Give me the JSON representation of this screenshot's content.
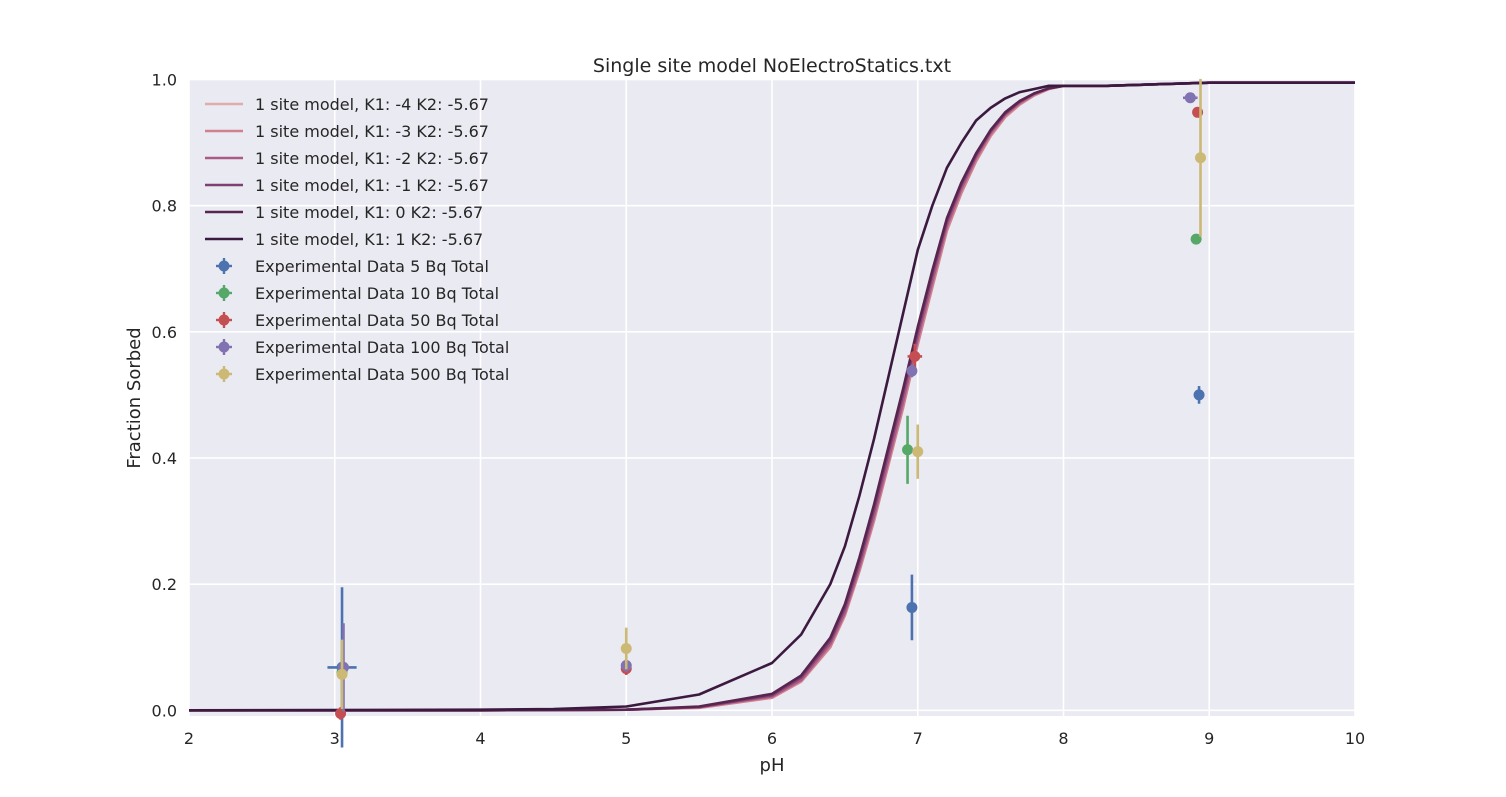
{
  "chart_data": {
    "type": "line",
    "title": "Single site model NoElectroStatics.txt",
    "xlabel": "pH",
    "ylabel": "Fraction Sorbed",
    "xlim": [
      2,
      10
    ],
    "ylim": [
      -0.01,
      1.0
    ],
    "xticks": [
      2,
      3,
      4,
      5,
      6,
      7,
      8,
      9,
      10
    ],
    "xtick_labels": [
      "2",
      "3",
      "4",
      "5",
      "6",
      "7",
      "8",
      "9",
      "10"
    ],
    "yticks": [
      0.0,
      0.2,
      0.4,
      0.6,
      0.8,
      1.0
    ],
    "ytick_labels": [
      "0.0",
      "0.2",
      "0.4",
      "0.6",
      "0.8",
      "1.0"
    ],
    "grid": true,
    "legend_position": "top-left",
    "series": [
      {
        "name": "1 site model, K1: -4 K2: -5.67",
        "kind": "line",
        "color": "#e0adab",
        "x": [
          2,
          4,
          5,
          5.5,
          6,
          6.2,
          6.4,
          6.5,
          6.6,
          6.7,
          6.8,
          6.9,
          7.0,
          7.1,
          7.2,
          7.3,
          7.4,
          7.5,
          7.6,
          7.7,
          7.8,
          7.9,
          8.0,
          8.1,
          8.3,
          9,
          10
        ],
        "y": [
          0,
          0,
          0.001,
          0.004,
          0.02,
          0.045,
          0.1,
          0.15,
          0.22,
          0.3,
          0.39,
          0.48,
          0.58,
          0.67,
          0.76,
          0.82,
          0.87,
          0.91,
          0.94,
          0.96,
          0.975,
          0.985,
          0.99,
          0.99,
          0.99,
          0.995,
          0.995
        ]
      },
      {
        "name": "1 site model, K1: -3 K2: -5.67",
        "kind": "line",
        "color": "#d0808f",
        "x": [
          2,
          4,
          5,
          5.5,
          6,
          6.2,
          6.4,
          6.5,
          6.6,
          6.7,
          6.8,
          6.9,
          7.0,
          7.1,
          7.2,
          7.3,
          7.4,
          7.5,
          7.6,
          7.7,
          7.8,
          7.9,
          8.0,
          8.1,
          8.3,
          9,
          10
        ],
        "y": [
          0,
          0,
          0.001,
          0.004,
          0.02,
          0.046,
          0.1,
          0.151,
          0.221,
          0.301,
          0.391,
          0.481,
          0.581,
          0.671,
          0.761,
          0.821,
          0.871,
          0.911,
          0.941,
          0.961,
          0.975,
          0.985,
          0.99,
          0.99,
          0.99,
          0.995,
          0.995
        ]
      },
      {
        "name": "1 site model, K1: -2 K2: -5.67",
        "kind": "line",
        "color": "#a95b84",
        "x": [
          2,
          4,
          5,
          5.5,
          6,
          6.2,
          6.4,
          6.5,
          6.6,
          6.7,
          6.8,
          6.9,
          7.0,
          7.1,
          7.2,
          7.3,
          7.4,
          7.5,
          7.6,
          7.7,
          7.8,
          7.9,
          8.0,
          8.1,
          8.3,
          9,
          10
        ],
        "y": [
          0,
          0,
          0.001,
          0.005,
          0.022,
          0.048,
          0.105,
          0.155,
          0.227,
          0.308,
          0.398,
          0.49,
          0.59,
          0.68,
          0.768,
          0.827,
          0.876,
          0.915,
          0.944,
          0.963,
          0.977,
          0.986,
          0.99,
          0.99,
          0.99,
          0.995,
          0.995
        ]
      },
      {
        "name": "1 site model, K1: -1 K2: -5.67",
        "kind": "line",
        "color": "#7e3f73",
        "x": [
          2,
          4,
          5,
          5.5,
          6,
          6.2,
          6.4,
          6.5,
          6.6,
          6.7,
          6.8,
          6.9,
          7.0,
          7.1,
          7.2,
          7.3,
          7.4,
          7.5,
          7.6,
          7.7,
          7.8,
          7.9,
          8.0,
          8.1,
          8.3,
          9,
          10
        ],
        "y": [
          0,
          0,
          0.001,
          0.005,
          0.024,
          0.052,
          0.11,
          0.162,
          0.235,
          0.318,
          0.41,
          0.502,
          0.6,
          0.69,
          0.775,
          0.833,
          0.88,
          0.918,
          0.946,
          0.965,
          0.978,
          0.986,
          0.99,
          0.99,
          0.99,
          0.995,
          0.995
        ]
      },
      {
        "name": "1 site model, K1: 0 K2: -5.67",
        "kind": "line",
        "color": "#58254f",
        "x": [
          2,
          4,
          5,
          5.5,
          6,
          6.2,
          6.4,
          6.5,
          6.6,
          6.7,
          6.8,
          6.9,
          7.0,
          7.1,
          7.2,
          7.3,
          7.4,
          7.5,
          7.6,
          7.7,
          7.8,
          7.9,
          8.0,
          8.1,
          8.3,
          9,
          10
        ],
        "y": [
          0,
          0,
          0.001,
          0.006,
          0.026,
          0.055,
          0.115,
          0.168,
          0.242,
          0.326,
          0.418,
          0.51,
          0.608,
          0.697,
          0.78,
          0.837,
          0.883,
          0.92,
          0.948,
          0.966,
          0.978,
          0.986,
          0.99,
          0.99,
          0.99,
          0.995,
          0.995
        ]
      },
      {
        "name": "1 site model, K1: 1 K2: -5.67",
        "kind": "line",
        "color": "#3c1a40",
        "x": [
          2,
          4,
          4.5,
          5,
          5.5,
          6,
          6.2,
          6.4,
          6.5,
          6.6,
          6.7,
          6.8,
          6.9,
          7.0,
          7.1,
          7.2,
          7.3,
          7.4,
          7.5,
          7.6,
          7.7,
          7.8,
          7.9,
          8.0,
          8.1,
          8.3,
          9,
          10
        ],
        "y": [
          0,
          0.001,
          0.002,
          0.006,
          0.025,
          0.075,
          0.12,
          0.2,
          0.26,
          0.34,
          0.43,
          0.53,
          0.63,
          0.73,
          0.8,
          0.86,
          0.9,
          0.935,
          0.955,
          0.97,
          0.98,
          0.985,
          0.99,
          0.99,
          0.99,
          0.99,
          0.995,
          0.995
        ]
      },
      {
        "name": "Experimental Data 5 Bq Total",
        "kind": "errorbar",
        "color": "#4c72b0",
        "points": [
          {
            "x": 3.05,
            "y": 0.068,
            "yerr": 0.127,
            "xerr": 0.1
          },
          {
            "x": 6.96,
            "y": 0.163,
            "yerr": 0.052,
            "xerr": 0
          },
          {
            "x": 8.93,
            "y": 0.5,
            "yerr": 0.014,
            "xerr": 0
          }
        ]
      },
      {
        "name": "Experimental Data 10 Bq Total",
        "kind": "errorbar",
        "color": "#55a868",
        "points": [
          {
            "x": 3.05,
            "y": 0.06,
            "yerr": 0.03,
            "xerr": 0
          },
          {
            "x": 6.93,
            "y": 0.413,
            "yerr": 0.054,
            "xerr": 0
          },
          {
            "x": 8.91,
            "y": 0.747,
            "yerr": 0,
            "xerr": 0
          }
        ]
      },
      {
        "name": "Experimental Data 50 Bq Total",
        "kind": "errorbar",
        "color": "#c44e52",
        "points": [
          {
            "x": 3.04,
            "y": -0.005,
            "yerr": 0.01,
            "xerr": 0
          },
          {
            "x": 5.0,
            "y": 0.066,
            "yerr": 0.01,
            "xerr": 0
          },
          {
            "x": 6.98,
            "y": 0.561,
            "yerr": 0.02,
            "xerr": 0.05
          },
          {
            "x": 8.92,
            "y": 0.948,
            "yerr": 0,
            "xerr": 0
          }
        ]
      },
      {
        "name": "Experimental Data 100 Bq Total",
        "kind": "errorbar",
        "color": "#8172b2",
        "points": [
          {
            "x": 3.06,
            "y": 0.068,
            "yerr": 0.07,
            "xerr": 0.04
          },
          {
            "x": 5.0,
            "y": 0.071,
            "yerr": 0.01,
            "xerr": 0.03
          },
          {
            "x": 6.96,
            "y": 0.538,
            "yerr": 0.01,
            "xerr": 0.03
          },
          {
            "x": 8.87,
            "y": 0.971,
            "yerr": 0,
            "xerr": 0.05
          }
        ]
      },
      {
        "name": "Experimental Data 500 Bq Total",
        "kind": "errorbar",
        "color": "#ccb974",
        "points": [
          {
            "x": 3.05,
            "y": 0.057,
            "yerr": 0.055,
            "xerr": 0
          },
          {
            "x": 5.0,
            "y": 0.098,
            "yerr": 0.033,
            "xerr": 0
          },
          {
            "x": 7.0,
            "y": 0.41,
            "yerr": 0.043,
            "xerr": 0
          },
          {
            "x": 8.94,
            "y": 0.876,
            "yerr": 0.125,
            "xerr": 0
          }
        ]
      }
    ]
  }
}
